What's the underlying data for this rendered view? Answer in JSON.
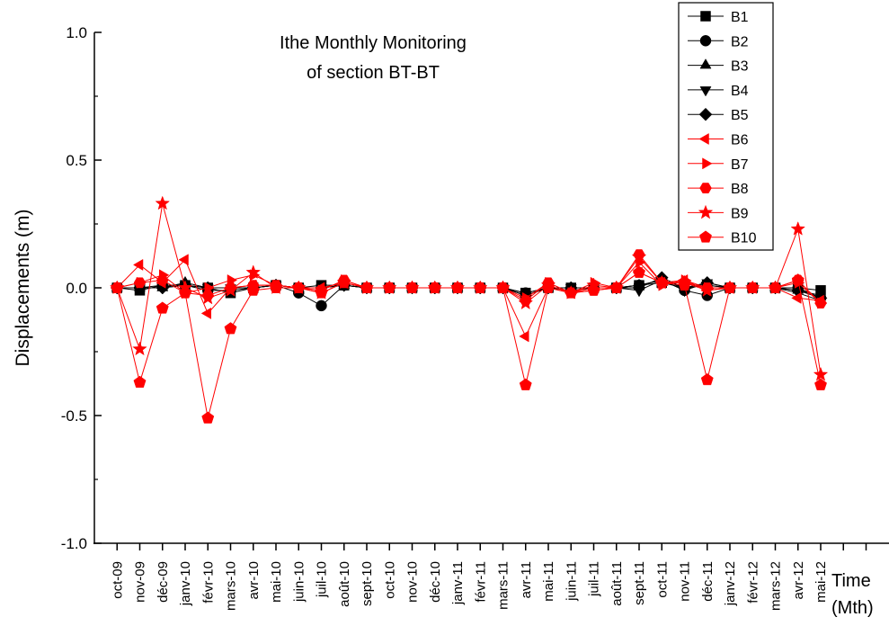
{
  "chart_data": {
    "type": "line",
    "title": [
      "Ithe Monthly Monitoring",
      "of section  BT-BT"
    ],
    "y_label": "Displacements (m)",
    "x_label": [
      "Time",
      "(Mth)"
    ],
    "categories": [
      "oct-09",
      "nov-09",
      "déc-09",
      "janv-10",
      "févr-10",
      "mars-10",
      "avr-10",
      "mai-10",
      "juin-10",
      "juil-10",
      "août-10",
      "sept-10",
      "oct-10",
      "nov-10",
      "déc-10",
      "janv-11",
      "févr-11",
      "mars-11",
      "avr-11",
      "mai-11",
      "juin-11",
      "juil-11",
      "août-11",
      "sept-11",
      "oct-11",
      "nov-11",
      "déc-11",
      "janv-12",
      "févr-12",
      "mars-12",
      "avr-12",
      "mai-12",
      null,
      null
    ],
    "ylim": [
      -1,
      1
    ],
    "yticks": [
      {
        "value": 1,
        "label": "1.0"
      },
      {
        "value": 0.5,
        "label": "0.5"
      },
      {
        "value": 0,
        "label": "0.0"
      },
      {
        "value": -0.5,
        "label": "-0.5"
      },
      {
        "value": -1,
        "label": "-1.0"
      }
    ],
    "legend": "top-right",
    "series": [
      {
        "name": "B1",
        "color": "#000000",
        "marker": "square",
        "values": [
          0,
          -0.01,
          0.01,
          0.01,
          0,
          -0.02,
          0,
          0.01,
          0,
          0.01,
          0.01,
          0,
          0,
          0,
          0,
          0,
          0,
          0,
          -0.02,
          0,
          0,
          0,
          0,
          0.01,
          0.02,
          0,
          0.01,
          0,
          0,
          0,
          0,
          -0.01,
          null,
          null
        ]
      },
      {
        "name": "B2",
        "color": "#000000",
        "marker": "circle",
        "values": [
          0,
          0,
          0.01,
          0.01,
          -0.01,
          -0.01,
          0,
          0.01,
          -0.02,
          -0.07,
          0.01,
          0,
          0,
          0,
          0,
          0,
          0,
          0,
          -0.02,
          0,
          -0.01,
          0,
          0,
          0.01,
          0.03,
          -0.01,
          -0.03,
          0,
          0,
          0,
          0,
          -0.04,
          null,
          null
        ]
      },
      {
        "name": "B3",
        "color": "#000000",
        "marker": "triangle-up",
        "values": [
          0,
          0,
          0,
          0.02,
          0,
          0,
          0,
          0.01,
          0,
          0,
          0.01,
          0,
          0,
          0,
          0,
          0,
          0,
          0,
          -0.03,
          0,
          0,
          0,
          0,
          0.01,
          0.03,
          0,
          0.01,
          0,
          0,
          0,
          -0.01,
          -0.03,
          null,
          null
        ]
      },
      {
        "name": "B4",
        "color": "#000000",
        "marker": "triangle-down",
        "values": [
          0,
          0,
          0,
          0.01,
          0,
          0,
          0,
          0.01,
          0,
          0,
          0.01,
          0,
          0,
          0,
          0,
          0,
          0,
          0,
          -0.03,
          0,
          0,
          0,
          0,
          -0.01,
          0.03,
          -0.01,
          0.02,
          0,
          0,
          0,
          -0.02,
          -0.05,
          null,
          null
        ]
      },
      {
        "name": "B5",
        "color": "#000000",
        "marker": "diamond",
        "values": [
          0,
          0,
          0,
          0.01,
          0,
          0,
          0,
          0.01,
          0,
          0,
          0.01,
          0,
          0,
          0,
          0,
          0,
          0,
          0,
          -0.03,
          0,
          0,
          0,
          0,
          0,
          0.04,
          0,
          0.02,
          0,
          0,
          0,
          -0.01,
          -0.04,
          null,
          null
        ]
      },
      {
        "name": "B6",
        "color": "#ff0000",
        "marker": "triangle-left",
        "values": [
          0,
          0.09,
          0.02,
          0.11,
          -0.1,
          0,
          0.01,
          0.01,
          0,
          0,
          0.02,
          0,
          0,
          0,
          0,
          0,
          0,
          0,
          -0.19,
          0,
          -0.02,
          0,
          0,
          0.06,
          0.02,
          0.03,
          -0.01,
          0,
          0,
          0,
          -0.04,
          -0.05,
          null,
          null
        ]
      },
      {
        "name": "B7",
        "color": "#ff0000",
        "marker": "triangle-right",
        "values": [
          0,
          0.02,
          0.05,
          -0.02,
          0,
          0.03,
          0.05,
          0.01,
          0,
          -0.01,
          0.03,
          0,
          0,
          0,
          0,
          0,
          0,
          0,
          -0.04,
          0.02,
          -0.02,
          0.02,
          0,
          0.1,
          0.01,
          0.03,
          0,
          0,
          0,
          0,
          0.02,
          -0.06,
          null,
          null
        ]
      },
      {
        "name": "B8",
        "color": "#ff0000",
        "marker": "hexagon",
        "values": [
          0,
          0.02,
          0.03,
          -0.02,
          -0.03,
          0,
          0.01,
          0.01,
          0,
          -0.01,
          0.03,
          0,
          0,
          0,
          0,
          0,
          0,
          0,
          -0.05,
          0.02,
          -0.02,
          -0.01,
          0,
          0.13,
          0.02,
          0.02,
          0,
          0,
          0,
          0,
          0.03,
          -0.06,
          null,
          null
        ]
      },
      {
        "name": "B9",
        "color": "#ff0000",
        "marker": "star",
        "values": [
          0,
          -0.24,
          0.33,
          0,
          -0.04,
          -0.01,
          0.06,
          0,
          0,
          -0.02,
          0.02,
          0,
          0,
          0,
          0,
          0,
          0,
          0,
          -0.06,
          0.01,
          -0.02,
          0.01,
          0,
          0.12,
          0.02,
          0.02,
          -0.01,
          0,
          0,
          0,
          0.23,
          -0.34,
          null,
          null
        ]
      },
      {
        "name": "B10",
        "color": "#ff0000",
        "marker": "pentagon",
        "values": [
          0,
          -0.37,
          -0.08,
          -0.02,
          -0.51,
          -0.16,
          -0.01,
          0,
          0,
          -0.02,
          0.02,
          0,
          0,
          0,
          0,
          0,
          0,
          0,
          -0.38,
          0,
          -0.02,
          -0.01,
          0,
          0.06,
          0.02,
          0.01,
          -0.36,
          0,
          0,
          0,
          0.03,
          -0.38,
          null,
          null
        ]
      }
    ]
  }
}
